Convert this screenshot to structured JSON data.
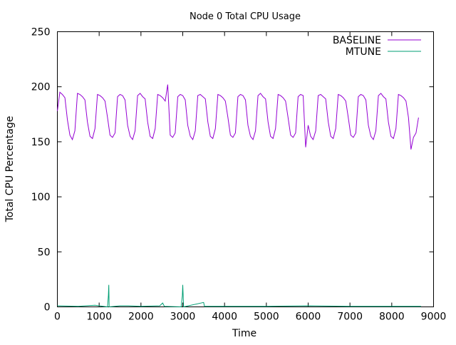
{
  "chart_data": {
    "type": "line",
    "title": "Node 0 Total CPU Usage",
    "xlabel": "Time",
    "ylabel": "Total CPU Percentage",
    "xlim": [
      0,
      9000
    ],
    "ylim": [
      0,
      250
    ],
    "xticks": [
      0,
      1000,
      2000,
      3000,
      4000,
      5000,
      6000,
      7000,
      8000,
      9000
    ],
    "yticks": [
      0,
      50,
      100,
      150,
      200,
      250
    ],
    "grid": false,
    "legend_position": "top-right",
    "series": [
      {
        "name": "BASELINE",
        "color": "#9400d3",
        "x_start": 0,
        "x_step": 60,
        "values": [
          178,
          195,
          193,
          190,
          170,
          156,
          152,
          160,
          194,
          193,
          191,
          188,
          168,
          155,
          153,
          162,
          193,
          192,
          190,
          187,
          172,
          156,
          154,
          158,
          191,
          193,
          192,
          188,
          165,
          155,
          152,
          160,
          192,
          194,
          191,
          189,
          168,
          155,
          153,
          162,
          193,
          192,
          190,
          187,
          202,
          156,
          154,
          158,
          191,
          193,
          192,
          188,
          165,
          155,
          152,
          160,
          192,
          193,
          191,
          189,
          168,
          155,
          153,
          162,
          193,
          192,
          190,
          187,
          172,
          156,
          154,
          158,
          191,
          193,
          192,
          188,
          165,
          155,
          152,
          160,
          192,
          194,
          191,
          189,
          168,
          155,
          153,
          162,
          193,
          192,
          190,
          187,
          172,
          156,
          154,
          158,
          191,
          193,
          192,
          145,
          165,
          155,
          152,
          160,
          192,
          193,
          191,
          189,
          168,
          155,
          153,
          162,
          193,
          192,
          190,
          187,
          172,
          156,
          154,
          158,
          191,
          193,
          192,
          188,
          165,
          155,
          152,
          160,
          192,
          194,
          191,
          189,
          168,
          155,
          153,
          162,
          193,
          192,
          190,
          187,
          172,
          143,
          154,
          158,
          172
        ]
      },
      {
        "name": "MTUNE",
        "color": "#009e73",
        "points": [
          [
            0,
            1
          ],
          [
            500,
            0.5
          ],
          [
            900,
            1.5
          ],
          [
            1200,
            0
          ],
          [
            1220,
            10
          ],
          [
            1230,
            20
          ],
          [
            1240,
            0
          ],
          [
            1500,
            1
          ],
          [
            1700,
            1
          ],
          [
            2000,
            0.5
          ],
          [
            2450,
            1
          ],
          [
            2520,
            3.5
          ],
          [
            2560,
            0.5
          ],
          [
            2960,
            0
          ],
          [
            2990,
            10
          ],
          [
            3000,
            20
          ],
          [
            3010,
            10
          ],
          [
            3020,
            0
          ],
          [
            3500,
            4
          ],
          [
            3520,
            0.5
          ],
          [
            4000,
            0.5
          ],
          [
            5000,
            0.5
          ],
          [
            6000,
            1
          ],
          [
            7000,
            0.5
          ],
          [
            8000,
            0.5
          ],
          [
            8700,
            0.5
          ]
        ]
      }
    ]
  }
}
